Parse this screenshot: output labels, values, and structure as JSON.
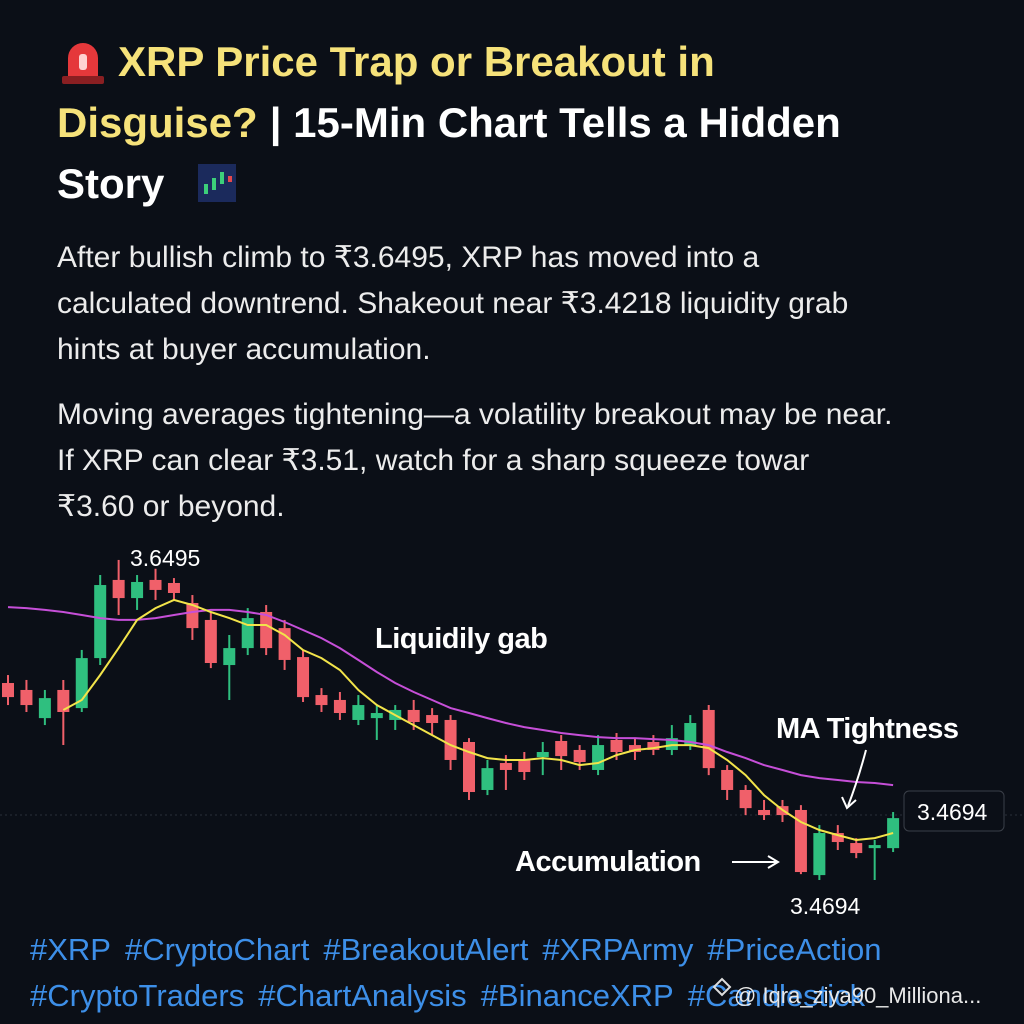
{
  "header": {
    "title_yellow": [
      "XRP Price Trap or Breakout in",
      "Disguise?"
    ],
    "title_white": [
      "| 15-Min Chart Tells a Hidden",
      "Story"
    ]
  },
  "paragraphs": [
    [
      "After bullish climb to ₹3.6495, XRP has moved into a",
      "calculated downtrend. Shakeout near ₹3.4218 liquidity grab",
      "hints at buyer accumulation."
    ],
    [
      "Moving averages tightening—a volatility breakout may be near.",
      "If XRP can clear ₹3.51, watch for a sharp squeeze towar",
      "₹3.60 or beyond."
    ]
  ],
  "chart_data": {
    "type": "candlestick",
    "ylim": [
      3.46,
      3.67
    ],
    "up_color": "#2fbf7f",
    "down_color": "#f0606a",
    "open": [
      3.5821,
      3.578,
      3.5614,
      3.578,
      3.5673,
      3.5968,
      3.6429,
      3.6322,
      3.6429,
      3.6411,
      3.6293,
      3.6193,
      3.5927,
      3.6027,
      3.624,
      3.6145,
      3.5974,
      3.575,
      3.5721,
      3.5603,
      3.5614,
      3.5603,
      3.5662,
      3.5632,
      3.5603,
      3.5473,
      3.519,
      3.5349,
      3.5367,
      3.5384,
      3.5479,
      3.5426,
      3.5308,
      3.5485,
      3.5455,
      3.5473,
      3.5426,
      3.5455,
      3.5662,
      3.5308,
      3.519,
      3.5072,
      3.5095,
      3.5072,
      3.4688,
      3.4936,
      3.4877,
      3.4847,
      3.4847
    ],
    "high": [
      3.5868,
      3.5839,
      3.578,
      3.5839,
      3.6016,
      3.6458,
      3.6547,
      3.6458,
      3.6495,
      3.644,
      3.634,
      3.624,
      3.6104,
      3.6263,
      3.6281,
      3.6193,
      3.6016,
      3.5791,
      3.5768,
      3.575,
      3.5691,
      3.5691,
      3.5721,
      3.5673,
      3.5632,
      3.5496,
      3.5367,
      3.5396,
      3.5414,
      3.5473,
      3.5514,
      3.5455,
      3.5514,
      3.5526,
      3.5496,
      3.5514,
      3.5573,
      3.5632,
      3.5691,
      3.5337,
      3.5219,
      3.5131,
      3.5131,
      3.5101,
      3.4983,
      3.4983,
      3.4906,
      3.4895,
      3.506
    ],
    "low": [
      3.5691,
      3.565,
      3.5573,
      3.5455,
      3.565,
      3.5927,
      3.6222,
      3.6252,
      3.6311,
      3.6311,
      3.6075,
      3.5909,
      3.5721,
      3.5986,
      3.5986,
      3.5898,
      3.5709,
      3.565,
      3.5603,
      3.5573,
      3.5485,
      3.5544,
      3.5544,
      3.5514,
      3.5308,
      3.5131,
      3.516,
      3.519,
      3.5249,
      3.5278,
      3.5308,
      3.5308,
      3.5278,
      3.5367,
      3.5367,
      3.5396,
      3.5396,
      3.5426,
      3.5278,
      3.5131,
      3.5042,
      3.5013,
      3.5001,
      3.4694,
      3.4659,
      3.4836,
      3.4788,
      3.4659,
      3.4824
    ],
    "close": [
      3.5738,
      3.5691,
      3.5732,
      3.565,
      3.5968,
      3.6399,
      3.6322,
      3.6417,
      3.637,
      3.6352,
      3.6145,
      3.5939,
      3.6027,
      3.6204,
      3.6027,
      3.5957,
      3.5738,
      3.5691,
      3.5644,
      3.5691,
      3.5644,
      3.5662,
      3.5591,
      3.5585,
      3.5367,
      3.5178,
      3.5319,
      3.5308,
      3.5296,
      3.5414,
      3.539,
      3.5355,
      3.5455,
      3.5414,
      3.5414,
      3.5426,
      3.5496,
      3.5585,
      3.5319,
      3.519,
      3.5083,
      3.5042,
      3.5042,
      3.4706,
      3.4936,
      3.4883,
      3.4818,
      3.4865,
      3.5024
    ],
    "lines": [
      {
        "color": "#c64fd8",
        "values": [
          3.6269,
          3.6263,
          3.6252,
          3.624,
          3.6222,
          3.6204,
          3.6193,
          3.6193,
          3.6204,
          3.6222,
          3.624,
          3.6252,
          3.6252,
          3.624,
          3.6222,
          3.6181,
          3.6134,
          3.6086,
          3.6027,
          3.5957,
          3.5886,
          3.5821,
          3.5768,
          3.5721,
          3.5673,
          3.5644,
          3.5614,
          3.5585,
          3.5561,
          3.5544,
          3.5526,
          3.5514,
          3.5502,
          3.5496,
          3.5496,
          3.549,
          3.5485,
          3.5473,
          3.5455,
          3.5414,
          3.5378,
          3.5337,
          3.5308,
          3.5278,
          3.526,
          3.5249,
          3.5237,
          3.5231,
          3.5219
        ]
      },
      {
        "color": "#f2e44a",
        "values": [
          null,
          null,
          null,
          3.5662,
          3.5721,
          3.5868,
          3.6027,
          3.6193,
          3.6263,
          3.6311,
          3.6281,
          3.624,
          3.6204,
          3.6163,
          3.6163,
          3.6104,
          3.6016,
          3.5968,
          3.5898,
          3.578,
          3.5691,
          3.5632,
          3.5573,
          3.5514,
          3.5455,
          3.5414,
          3.5378,
          3.5367,
          3.5367,
          3.5378,
          3.5367,
          3.5337,
          3.5349,
          3.5396,
          3.5426,
          3.5437,
          3.5455,
          3.5455,
          3.5437,
          3.5367,
          3.5278,
          3.516,
          3.5072,
          3.5001,
          3.4954,
          3.4924,
          3.4895,
          3.4906,
          3.4936
        ]
      }
    ],
    "annotations": [
      "3.6495",
      "Liquidily gab",
      "MA Tightness",
      "3.4694",
      "Accumulation",
      "3.4694"
    ]
  },
  "hashtags": [
    [
      "#XRP",
      "#CryptoChart",
      "#BreakoutAlert",
      "#XRPArmy",
      "#PriceAction"
    ],
    [
      "#CryptoTraders",
      "#ChartAnalysis",
      "#BinanceXRP",
      "#Candlestick"
    ]
  ],
  "watermark": "@ Iqra_ziya90_Milliona..."
}
